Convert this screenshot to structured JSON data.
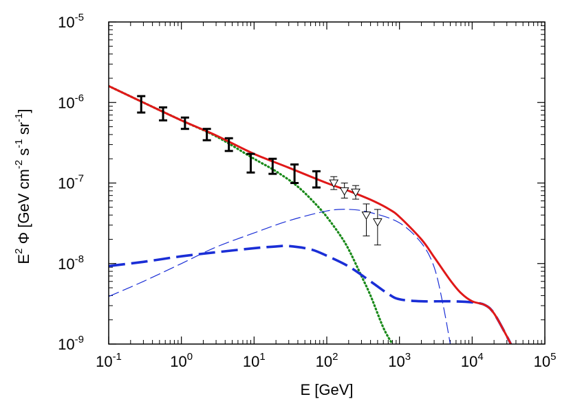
{
  "chart_data": {
    "type": "line",
    "xlabel": {
      "main": "E [GeV]"
    },
    "ylabel": {
      "parts": [
        {
          "t": "E",
          "s": ""
        },
        {
          "t": "2",
          "s": "sup"
        },
        {
          "t": " Φ [GeV cm",
          "s": ""
        },
        {
          "t": "-2",
          "s": "sup"
        },
        {
          "t": " s",
          "s": ""
        },
        {
          "t": "-1",
          "s": "sup"
        },
        {
          "t": " sr",
          "s": ""
        },
        {
          "t": "-1",
          "s": "sup"
        },
        {
          "t": "]",
          "s": ""
        }
      ]
    },
    "x_scale": "log",
    "y_scale": "log",
    "xlim": [
      0.1,
      100000
    ],
    "ylim": [
      1e-09,
      1e-05
    ],
    "x_ticks": [
      {
        "base": "10",
        "exp": "-1",
        "value": 0.1
      },
      {
        "base": "10",
        "exp": "0",
        "value": 1
      },
      {
        "base": "10",
        "exp": "1",
        "value": 10
      },
      {
        "base": "10",
        "exp": "2",
        "value": 100
      },
      {
        "base": "10",
        "exp": "3",
        "value": 1000
      },
      {
        "base": "10",
        "exp": "4",
        "value": 10000
      },
      {
        "base": "10",
        "exp": "5",
        "value": 100000
      }
    ],
    "y_ticks": [
      {
        "base": "10",
        "exp": "-9",
        "value": 1e-09
      },
      {
        "base": "10",
        "exp": "-8",
        "value": 1e-08
      },
      {
        "base": "10",
        "exp": "-7",
        "value": 1e-07
      },
      {
        "base": "10",
        "exp": "-6",
        "value": 1e-06
      },
      {
        "base": "10",
        "exp": "-5",
        "value": 1e-05
      }
    ],
    "series": [
      {
        "style": "dotted",
        "color": "#1a8a1a",
        "points": [
          [
            0.1,
            1.6e-06
          ],
          [
            0.3,
            1e-06
          ],
          [
            1,
            6e-07
          ],
          [
            3,
            3.8e-07
          ],
          [
            10,
            2e-07
          ],
          [
            20,
            1.4e-07
          ],
          [
            40,
            9e-08
          ],
          [
            70,
            5.5e-08
          ],
          [
            100,
            3.8e-08
          ],
          [
            150,
            2.3e-08
          ],
          [
            200,
            1.5e-08
          ],
          [
            300,
            7e-09
          ],
          [
            400,
            4e-09
          ],
          [
            600,
            1.6e-09
          ],
          [
            800,
            1e-09
          ]
        ]
      },
      {
        "style": "thin-dashed",
        "color": "#1a2ed6",
        "points": [
          [
            0.1,
            3.9e-09
          ],
          [
            0.3,
            6e-09
          ],
          [
            1,
            1e-08
          ],
          [
            3,
            1.6e-08
          ],
          [
            10,
            2.4e-08
          ],
          [
            30,
            3.4e-08
          ],
          [
            100,
            4.5e-08
          ],
          [
            200,
            4.7e-08
          ],
          [
            400,
            4.3e-08
          ],
          [
            1000,
            3.2e-08
          ],
          [
            2000,
            1.8e-08
          ],
          [
            3000,
            9e-09
          ],
          [
            4000,
            3e-09
          ],
          [
            5000,
            1e-09
          ]
        ]
      },
      {
        "style": "thick-dashed",
        "color": "#1a2ed6",
        "points": [
          [
            0.1,
            9.3e-09
          ],
          [
            0.3,
            1.05e-08
          ],
          [
            1,
            1.23e-08
          ],
          [
            3,
            1.38e-08
          ],
          [
            10,
            1.55e-08
          ],
          [
            20,
            1.63e-08
          ],
          [
            30,
            1.65e-08
          ],
          [
            60,
            1.5e-08
          ],
          [
            100,
            1.25e-08
          ],
          [
            200,
            9.2e-09
          ],
          [
            400,
            6e-09
          ],
          [
            700,
            4.2e-09
          ],
          [
            1000,
            3.6e-09
          ],
          [
            2000,
            3.4e-09
          ],
          [
            5000,
            3.4e-09
          ],
          [
            10000,
            3.3e-09
          ],
          [
            15000,
            3.05e-09
          ],
          [
            20000,
            2.4e-09
          ],
          [
            30000,
            1.25e-09
          ],
          [
            35000,
            9.5e-10
          ]
        ]
      },
      {
        "style": "solid",
        "color": "#e01818",
        "points": [
          [
            0.1,
            1.6e-06
          ],
          [
            0.3,
            1e-06
          ],
          [
            1,
            6e-07
          ],
          [
            3,
            3.9e-07
          ],
          [
            10,
            2.3e-07
          ],
          [
            30,
            1.55e-07
          ],
          [
            100,
            1e-07
          ],
          [
            200,
            8e-08
          ],
          [
            400,
            6.2e-08
          ],
          [
            700,
            4.8e-08
          ],
          [
            1000,
            3.8e-08
          ],
          [
            2000,
            2e-08
          ],
          [
            3000,
            1.2e-08
          ],
          [
            5000,
            6.2e-09
          ],
          [
            7000,
            4.3e-09
          ],
          [
            10000,
            3.4e-09
          ],
          [
            15000,
            3.05e-09
          ],
          [
            20000,
            2.4e-09
          ],
          [
            30000,
            1.25e-09
          ],
          [
            35000,
            9.5e-10
          ]
        ]
      }
    ],
    "data_points_filled": [
      {
        "x": 0.28,
        "y": 9.5e-07,
        "lo": 7.5e-07,
        "hi": 1.2e-06
      },
      {
        "x": 0.56,
        "y": 7.2e-07,
        "lo": 6e-07,
        "hi": 8.7e-07
      },
      {
        "x": 1.12,
        "y": 5.5e-07,
        "lo": 4.7e-07,
        "hi": 6.5e-07
      },
      {
        "x": 2.24,
        "y": 4e-07,
        "lo": 3.4e-07,
        "hi": 4.7e-07
      },
      {
        "x": 4.5,
        "y": 3e-07,
        "lo": 2.5e-07,
        "hi": 3.6e-07
      },
      {
        "x": 9.0,
        "y": 1.75e-07,
        "lo": 1.35e-07,
        "hi": 2.3e-07
      },
      {
        "x": 18,
        "y": 1.6e-07,
        "lo": 1.3e-07,
        "hi": 2e-07
      },
      {
        "x": 36,
        "y": 1.3e-07,
        "lo": 1e-07,
        "hi": 1.7e-07
      },
      {
        "x": 72,
        "y": 1.1e-07,
        "lo": 8.8e-08,
        "hi": 1.4e-07
      }
    ],
    "data_points_open": [
      {
        "x": 125,
        "y": 1e-07,
        "lo": 8.3e-08,
        "hi": 1.2e-07
      },
      {
        "x": 175,
        "y": 8e-08,
        "lo": 6.5e-08,
        "hi": 1e-07
      },
      {
        "x": 250,
        "y": 7.7e-08,
        "lo": 6.3e-08,
        "hi": 9.3e-08
      },
      {
        "x": 350,
        "y": 4e-08,
        "lo": 2.2e-08,
        "hi": 5.5e-08
      },
      {
        "x": 500,
        "y": 3.3e-08,
        "lo": 1.7e-08,
        "hi": 4.7e-08
      }
    ]
  }
}
